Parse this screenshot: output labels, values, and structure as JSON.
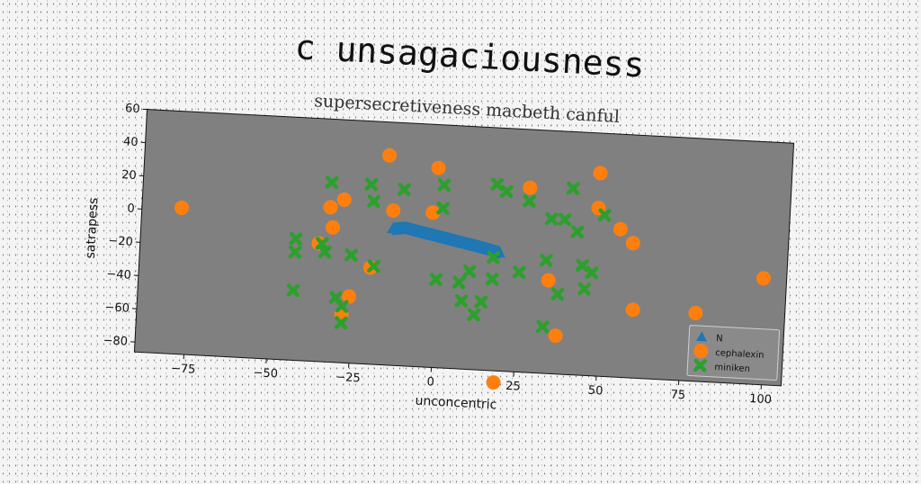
{
  "chart_data": {
    "type": "scatter",
    "title": "c unsagaciousness",
    "subtitle": "supersecretiveness macbeth canful",
    "xlabel": "unconcentric",
    "ylabel": "satrapess",
    "xlim": [
      -90,
      106
    ],
    "ylim": [
      -86,
      60
    ],
    "xticks": [
      -75,
      -50,
      -25,
      0,
      25,
      50,
      75,
      100
    ],
    "yticks": [
      60,
      40,
      20,
      0,
      -20,
      -40,
      -60,
      -80
    ],
    "grid": false,
    "legend_position": "bottom-right",
    "background": "#808080",
    "series": [
      {
        "name": "N",
        "marker": "triangle",
        "color": "#1f77b4",
        "points": [
          [
            -14,
            -4
          ],
          [
            -10,
            -3
          ],
          [
            -5,
            -5
          ],
          [
            0,
            -7
          ],
          [
            5,
            -9
          ],
          [
            10,
            -11
          ],
          [
            15,
            -13
          ],
          [
            19,
            -15
          ]
        ]
      },
      {
        "name": "cephalexin",
        "marker": "circle",
        "color": "#ff7f0e",
        "points": [
          [
            -78,
            2
          ],
          [
            -16,
            40
          ],
          [
            -1,
            34
          ],
          [
            27,
            25
          ],
          [
            48,
            36
          ],
          [
            48,
            15
          ],
          [
            55,
            3
          ],
          [
            59,
            -5
          ],
          [
            99,
            -22
          ],
          [
            79,
            -45
          ],
          [
            60,
            -45
          ],
          [
            37,
            -63
          ],
          [
            34,
            -30
          ],
          [
            19,
            -93
          ],
          [
            -28,
            -57
          ],
          [
            -26,
            -46
          ],
          [
            -20,
            -28
          ],
          [
            -32,
            -5
          ],
          [
            -36,
            -15
          ],
          [
            -29,
            12
          ],
          [
            -33,
            7
          ],
          [
            -14,
            7
          ],
          [
            -2,
            7
          ]
        ]
      },
      {
        "name": "miniken",
        "marker": "x",
        "color": "#2ca02c",
        "points": [
          [
            -33,
            22
          ],
          [
            -21,
            22
          ],
          [
            -11,
            20
          ],
          [
            -20,
            12
          ],
          [
            1,
            24
          ],
          [
            1,
            10
          ],
          [
            17,
            26
          ],
          [
            20,
            22
          ],
          [
            27,
            17
          ],
          [
            40,
            26
          ],
          [
            34,
            7
          ],
          [
            38,
            7
          ],
          [
            42,
            0
          ],
          [
            50,
            11
          ],
          [
            44,
            -20
          ],
          [
            47,
            -24
          ],
          [
            45,
            -34
          ],
          [
            37,
            -38
          ],
          [
            33,
            -18
          ],
          [
            25,
            -26
          ],
          [
            17,
            -18
          ],
          [
            17,
            -31
          ],
          [
            10,
            -27
          ],
          [
            7,
            -34
          ],
          [
            0,
            -33
          ],
          [
            8,
            -45
          ],
          [
            12,
            -53
          ],
          [
            14,
            -45
          ],
          [
            33,
            -58
          ],
          [
            -26,
            -21
          ],
          [
            -34,
            -20
          ],
          [
            -35,
            -15
          ],
          [
            -43,
            -13
          ],
          [
            -43,
            -21
          ],
          [
            -43,
            -44
          ],
          [
            -30,
            -47
          ],
          [
            -28,
            -52
          ],
          [
            -28,
            -62
          ],
          [
            -19,
            -27
          ]
        ]
      }
    ]
  }
}
